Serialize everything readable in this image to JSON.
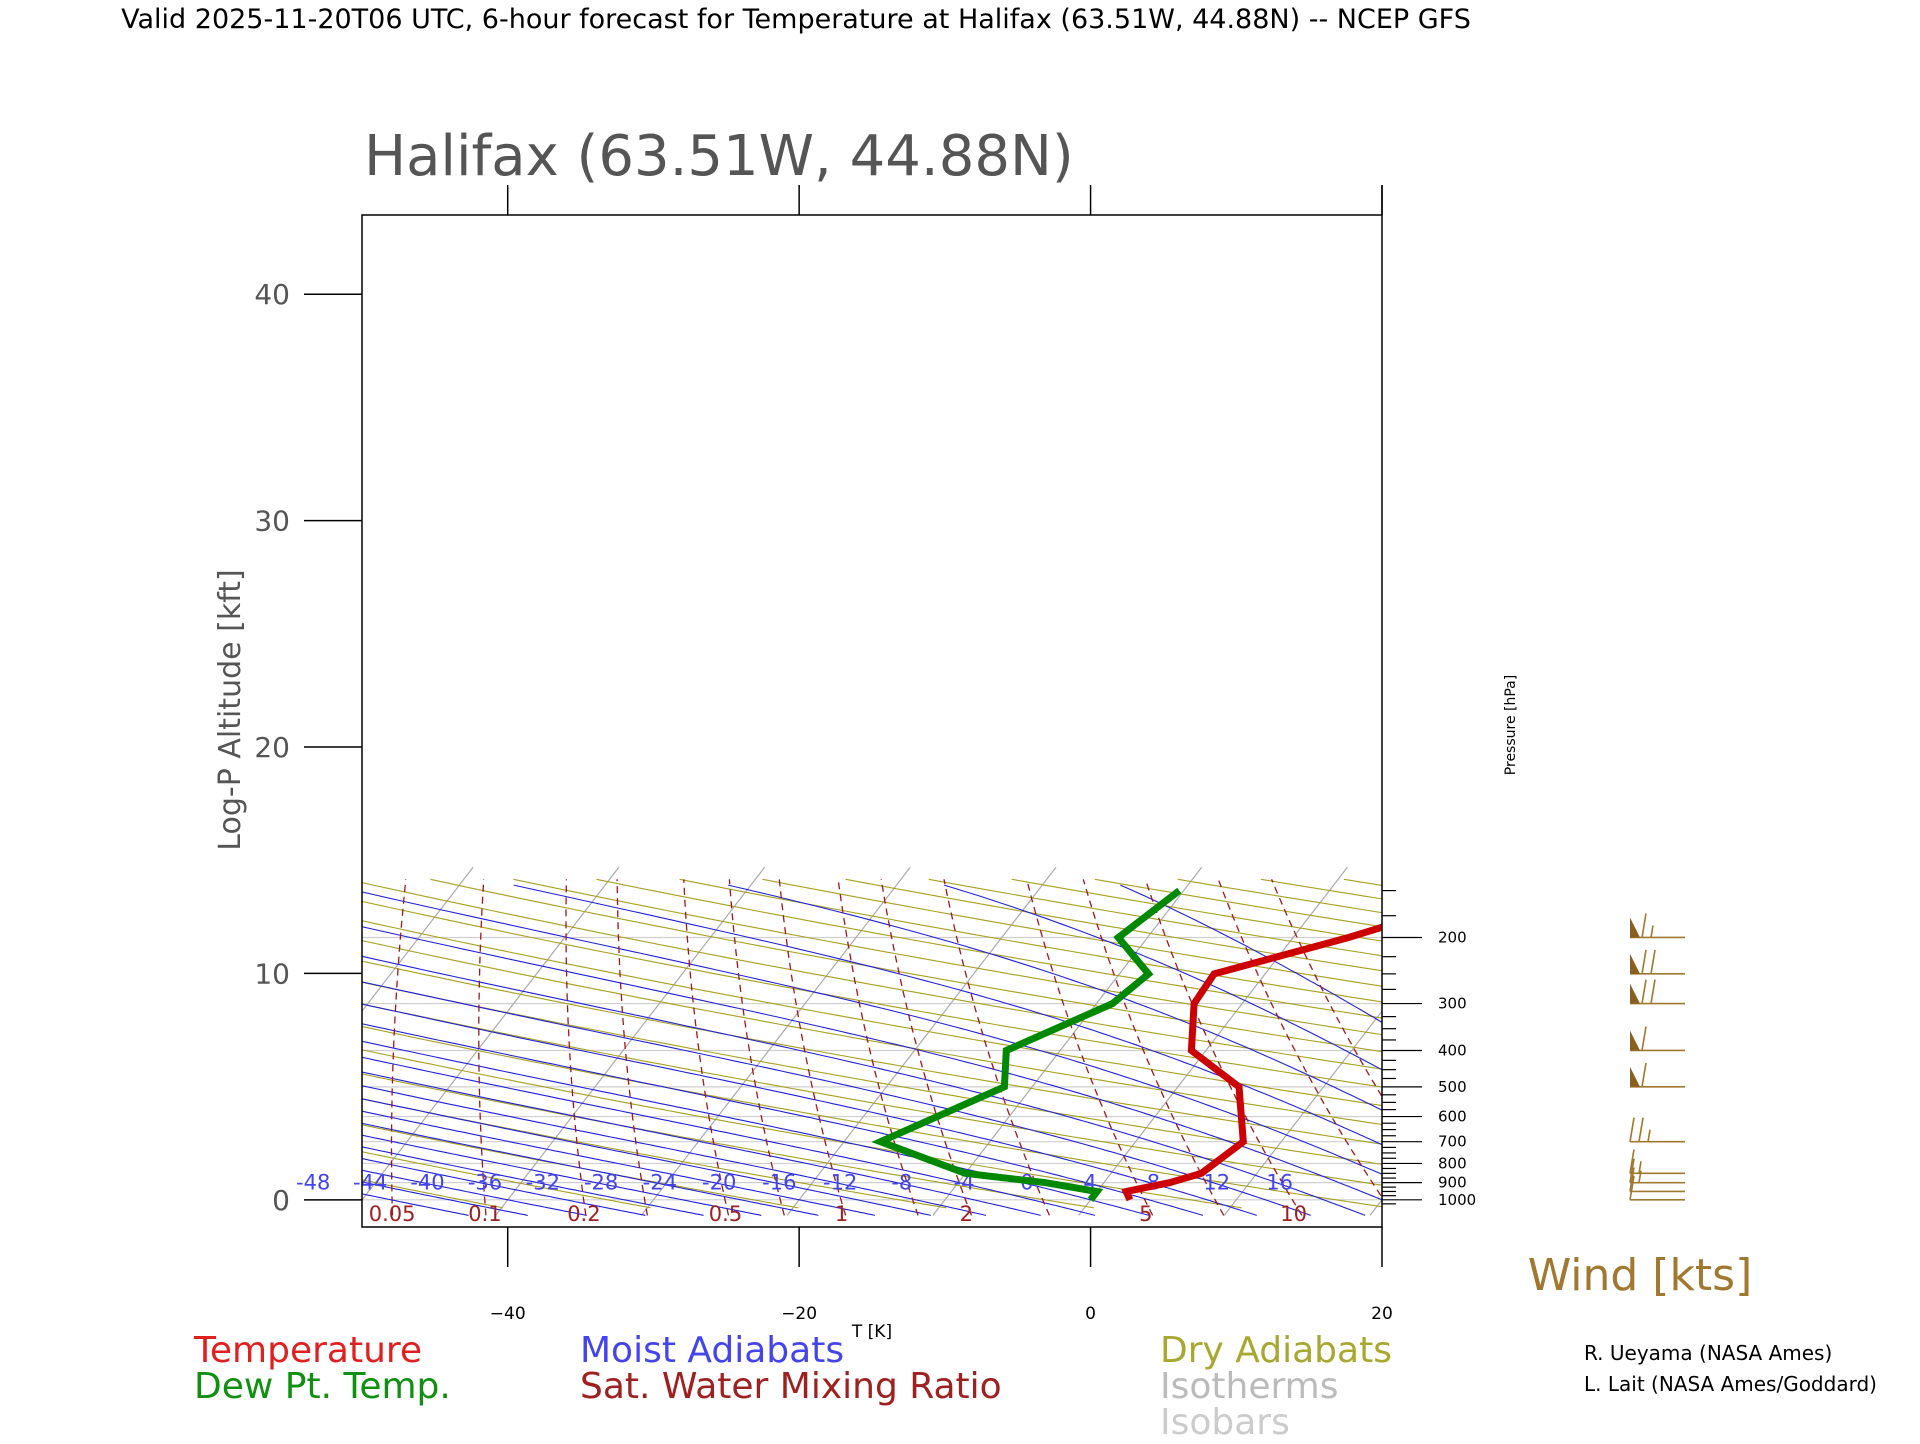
{
  "header": {
    "title": "Valid 2025-11-20T06 UTC, 6-hour forecast for Temperature at Halifax (63.51W, 44.88N) -- NCEP GFS"
  },
  "chart_data": {
    "type": "line",
    "subtype": "skew-T log-P diagram",
    "title": "Halifax (63.51W, 44.88N)",
    "xlabel": "T [K]",
    "ylabel": "Log-P Altitude [kft]",
    "y2label": "Pressure [hPa]",
    "xlim": [
      -50,
      20
    ],
    "ylim": [
      -1.2,
      43.5
    ],
    "x_ticks": [
      -40,
      -20,
      0,
      20
    ],
    "y_ticks": [
      0,
      10,
      20,
      30,
      40
    ],
    "pressure_ticks": [
      1000,
      900,
      800,
      700,
      600,
      500,
      400,
      300,
      200
    ],
    "moist_adiabat_labels": [
      "-48",
      "-44",
      "-40",
      "-36",
      "-32",
      "-28",
      "-24",
      "-20",
      "-16",
      "-12",
      "-8",
      "-4",
      "0",
      "4",
      "8",
      "12",
      "16"
    ],
    "mixing_ratio_labels": [
      "0.05",
      "0.1",
      "0.2",
      "0.5",
      "1",
      "2",
      "5",
      "10"
    ],
    "series": [
      {
        "name": "Temperature",
        "color": "#cc0000",
        "points": [
          {
            "p": 1000,
            "t": 2.7
          },
          {
            "p": 950,
            "t": 2.0
          },
          {
            "p": 900,
            "t": 4.5
          },
          {
            "p": 850,
            "t": 6.2
          },
          {
            "p": 700,
            "t": 7.4
          },
          {
            "p": 500,
            "t": 4.2
          },
          {
            "p": 400,
            "t": -1.0
          },
          {
            "p": 300,
            "t": -3.3
          },
          {
            "p": 250,
            "t": -3.5
          },
          {
            "p": 200,
            "t": 3.8
          },
          {
            "p": 150,
            "t": 11.8
          }
        ]
      },
      {
        "name": "Dew Pt. Temp.",
        "color": "#008800",
        "points": [
          {
            "p": 1000,
            "t": 0.0
          },
          {
            "p": 975,
            "t": 0.0
          },
          {
            "p": 950,
            "t": 0.0
          },
          {
            "p": 900,
            "t": -4.0
          },
          {
            "p": 850,
            "t": -10.0
          },
          {
            "p": 700,
            "t": -17.5
          },
          {
            "p": 500,
            "t": -11.9
          },
          {
            "p": 400,
            "t": -13.7
          },
          {
            "p": 300,
            "t": -8.9
          },
          {
            "p": 250,
            "t": -8.0
          },
          {
            "p": 200,
            "t": -12.0
          },
          {
            "p": 150,
            "t": -10.3
          }
        ]
      }
    ],
    "wind_barbs": [
      {
        "p": 1000,
        "kts": 10
      },
      {
        "p": 950,
        "kts": 10
      },
      {
        "p": 900,
        "kts": 15
      },
      {
        "p": 850,
        "kts": 15
      },
      {
        "p": 700,
        "kts": 25
      },
      {
        "p": 500,
        "kts": 60
      },
      {
        "p": 400,
        "kts": 60
      },
      {
        "p": 300,
        "kts": 70
      },
      {
        "p": 250,
        "kts": 70
      },
      {
        "p": 200,
        "kts": 65
      }
    ],
    "wind_label": "Wind [kts]",
    "legend": [
      {
        "label": "Temperature",
        "color": "#e02020"
      },
      {
        "label": "Dew Pt. Temp.",
        "color": "#109010"
      },
      {
        "label": "Moist Adiabats",
        "color": "#4444ee"
      },
      {
        "label": "Sat. Water Mixing Ratio",
        "color": "#a02020"
      },
      {
        "label": "Dry Adiabats",
        "color": "#a8a830"
      },
      {
        "label": "Isotherms",
        "color": "#bbbbbb"
      },
      {
        "label": "Isobars",
        "color": "#cccccc"
      }
    ],
    "grid": true
  },
  "credits": {
    "line1": "R. Ueyama (NASA Ames)",
    "line2": "L. Lait (NASA Ames/Goddard)"
  }
}
